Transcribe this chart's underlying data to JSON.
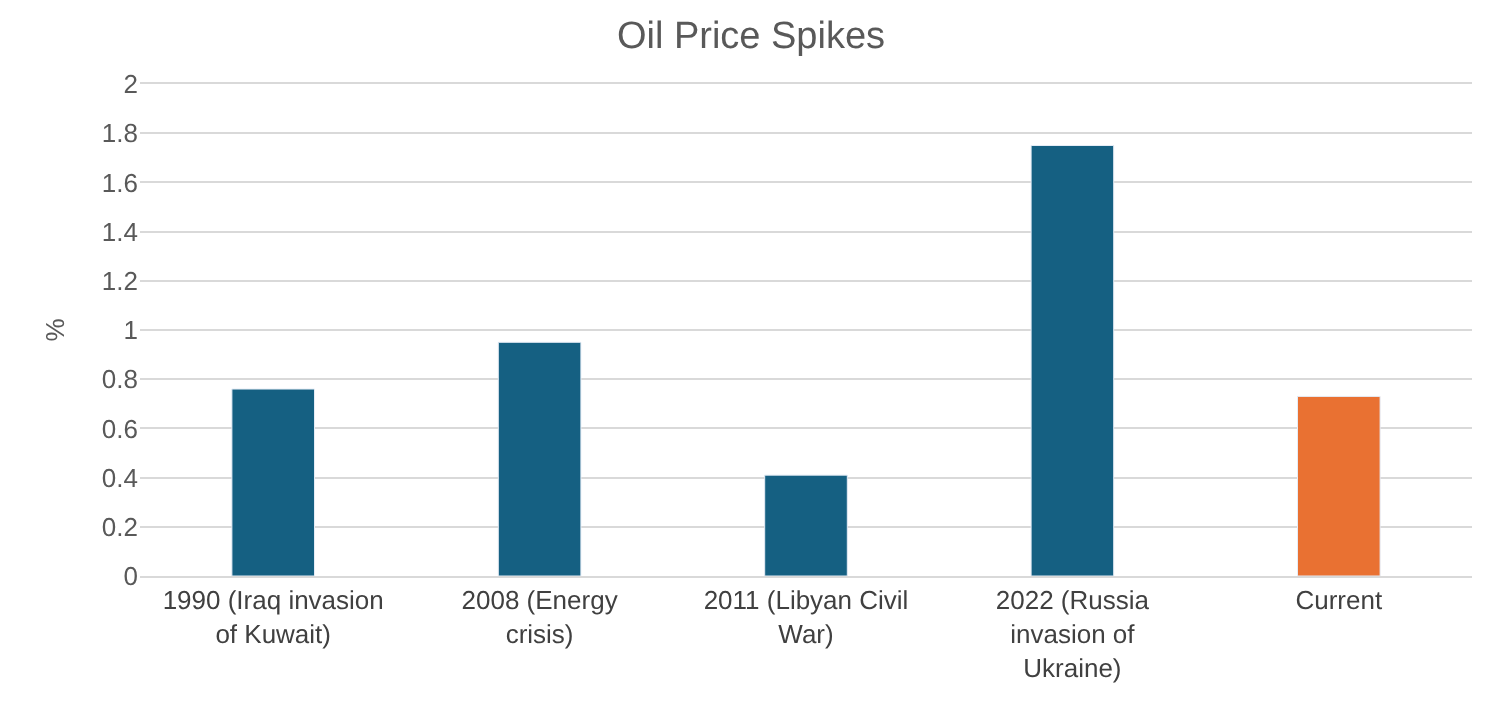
{
  "chart_data": {
    "type": "bar",
    "title": "Oil Price Spikes",
    "ylabel": "%",
    "categories": [
      "1990 (Iraq invasion of Kuwait)",
      "2008 (Energy crisis)",
      "2011 (Libyan Civil War)",
      "2022 (Russia invasion of Ukraine)",
      "Current"
    ],
    "values": [
      0.76,
      0.95,
      0.41,
      1.75,
      0.73
    ],
    "colors": [
      "#156082",
      "#156082",
      "#156082",
      "#156082",
      "#e97132"
    ],
    "ylim": [
      0,
      2
    ],
    "yticks": [
      0,
      0.2,
      0.4,
      0.6,
      0.8,
      1,
      1.2,
      1.4,
      1.6,
      1.8,
      2
    ],
    "grid": "y"
  }
}
